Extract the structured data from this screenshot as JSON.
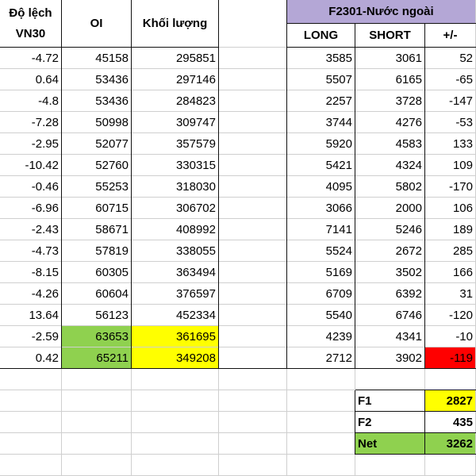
{
  "headers": {
    "deviation": "Độ lệch\nVN30",
    "oi": "OI",
    "volume": "Khối lượng",
    "foreign_title": "F2301-Nước ngoài",
    "long": "LONG",
    "short": "SHORT",
    "net_change": "+/-"
  },
  "rows": [
    {
      "deviation": "-4.72",
      "oi": "45158",
      "volume": "295851",
      "long": "3585",
      "short": "3061",
      "net": "52"
    },
    {
      "deviation": "0.64",
      "oi": "53436",
      "volume": "297146",
      "long": "5507",
      "short": "6165",
      "net": "-65"
    },
    {
      "deviation": "-4.8",
      "oi": "53436",
      "volume": "284823",
      "long": "2257",
      "short": "3728",
      "net": "-147"
    },
    {
      "deviation": "-7.28",
      "oi": "50998",
      "volume": "309747",
      "long": "3744",
      "short": "4276",
      "net": "-53"
    },
    {
      "deviation": "-2.95",
      "oi": "52077",
      "volume": "357579",
      "long": "5920",
      "short": "4583",
      "net": "133"
    },
    {
      "deviation": "-10.42",
      "oi": "52760",
      "volume": "330315",
      "long": "5421",
      "short": "4324",
      "net": "109"
    },
    {
      "deviation": "-0.46",
      "oi": "55253",
      "volume": "318030",
      "long": "4095",
      "short": "5802",
      "net": "-170"
    },
    {
      "deviation": "-6.96",
      "oi": "60715",
      "volume": "306702",
      "long": "3066",
      "short": "2000",
      "net": "106"
    },
    {
      "deviation": "-2.43",
      "oi": "58671",
      "volume": "408992",
      "long": "7141",
      "short": "5246",
      "net": "189"
    },
    {
      "deviation": "-4.73",
      "oi": "57819",
      "volume": "338055",
      "long": "5524",
      "short": "2672",
      "net": "285"
    },
    {
      "deviation": "-8.15",
      "oi": "60305",
      "volume": "363494",
      "long": "5169",
      "short": "3502",
      "net": "166"
    },
    {
      "deviation": "-4.26",
      "oi": "60604",
      "volume": "376597",
      "long": "6709",
      "short": "6392",
      "net": "31"
    },
    {
      "deviation": "13.64",
      "oi": "56123",
      "volume": "452334",
      "long": "5540",
      "short": "6746",
      "net": "-120"
    },
    {
      "deviation": "-2.59",
      "oi": "63653",
      "volume": "361695",
      "long": "4239",
      "short": "4341",
      "net": "-10"
    },
    {
      "deviation": "0.42",
      "oi": "65211",
      "volume": "349208",
      "long": "2712",
      "short": "3902",
      "net": "-119"
    }
  ],
  "summary": [
    {
      "label": "F1",
      "value": "2827"
    },
    {
      "label": "F2",
      "value": "435"
    },
    {
      "label": "Net",
      "value": "3262"
    }
  ],
  "colors": {
    "green": "#8fd14f",
    "yellow": "#ffff00",
    "red": "#ff0000",
    "title_purple": "#b4a7d6",
    "grid": "#cfcfcf",
    "border": "#111111"
  },
  "highlights": {
    "green_oi_rows": [
      13,
      14
    ],
    "yellow_volume_rows": [
      13,
      14
    ],
    "red_net_rows": [
      14
    ],
    "summary_value_colors": [
      "#ffff00",
      "#ffffff",
      "#8fd14f"
    ],
    "summary_label_colors": [
      "#ffffff",
      "#ffffff",
      "#8fd14f"
    ]
  }
}
